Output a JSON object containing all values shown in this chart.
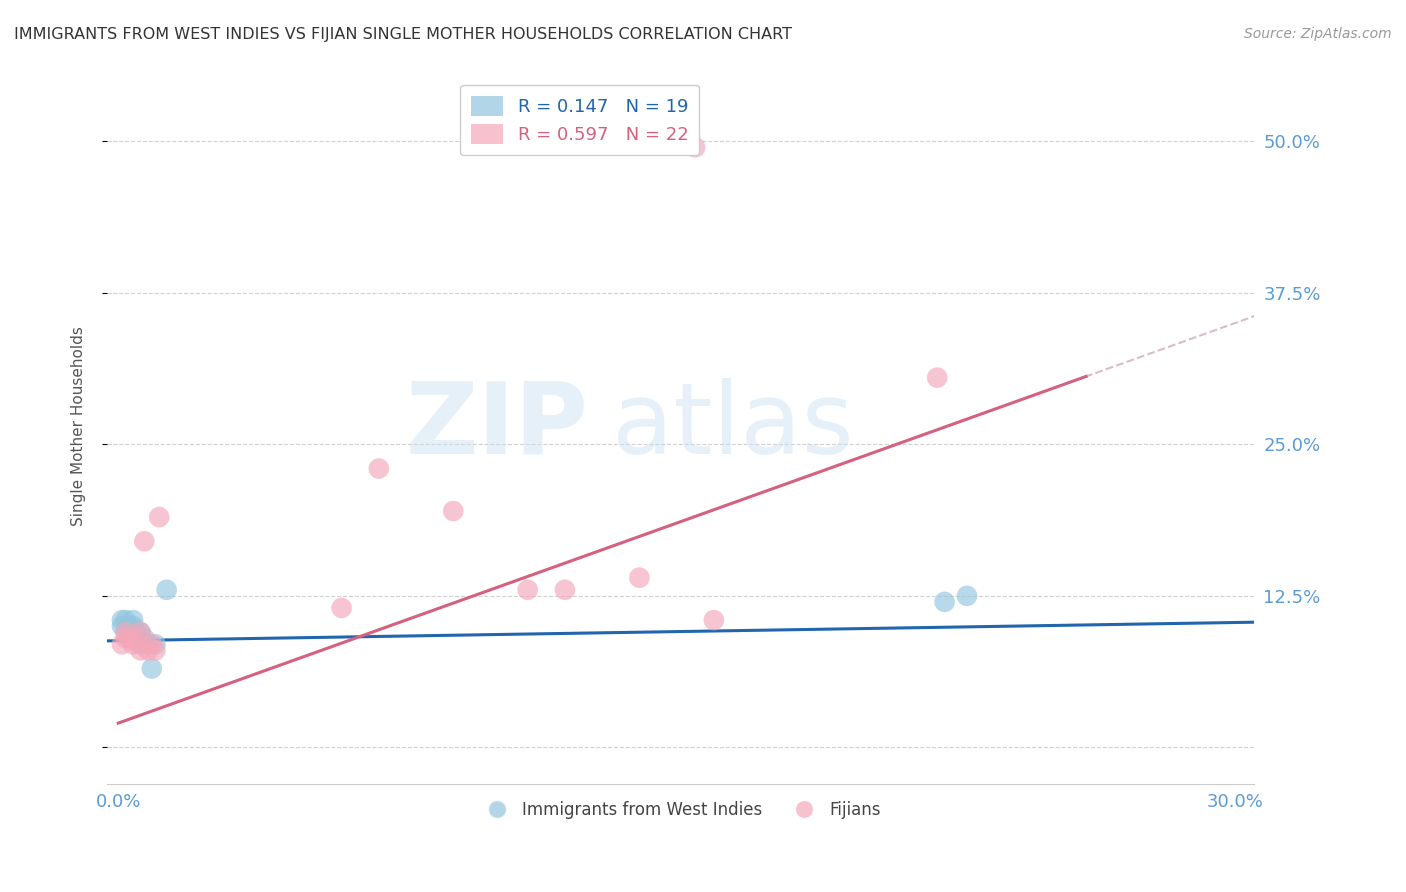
{
  "title": "IMMIGRANTS FROM WEST INDIES VS FIJIAN SINGLE MOTHER HOUSEHOLDS CORRELATION CHART",
  "source": "Source: ZipAtlas.com",
  "ylabel": "Single Mother Households",
  "xlim": [
    -0.003,
    0.305
  ],
  "ylim": [
    -0.03,
    0.56
  ],
  "yticks": [
    0.0,
    0.125,
    0.25,
    0.375,
    0.5
  ],
  "ytick_labels": [
    "",
    "12.5%",
    "25.0%",
    "37.5%",
    "50.0%"
  ],
  "xticks": [
    0.0,
    0.05,
    0.1,
    0.15,
    0.2,
    0.25,
    0.3
  ],
  "xtick_labels": [
    "0.0%",
    "",
    "",
    "",
    "",
    "",
    "30.0%"
  ],
  "legend_entry1": "R = 0.147   N = 19",
  "legend_entry2": "R = 0.597   N = 22",
  "legend_label1": "Immigrants from West Indies",
  "legend_label2": "Fijians",
  "blue_color": "#92c5de",
  "pink_color": "#f4a7b9",
  "blue_line_color": "#2166ac",
  "pink_line_color": "#d6617f",
  "pink_dash_color": "#c8a0b0",
  "blue_x": [
    0.001,
    0.001,
    0.002,
    0.002,
    0.003,
    0.003,
    0.004,
    0.004,
    0.005,
    0.005,
    0.006,
    0.006,
    0.007,
    0.008,
    0.009,
    0.01,
    0.013,
    0.222,
    0.228
  ],
  "blue_y": [
    0.1,
    0.105,
    0.095,
    0.105,
    0.095,
    0.1,
    0.1,
    0.105,
    0.09,
    0.095,
    0.095,
    0.085,
    0.09,
    0.085,
    0.065,
    0.085,
    0.13,
    0.12,
    0.125
  ],
  "pink_x": [
    0.001,
    0.002,
    0.002,
    0.003,
    0.004,
    0.005,
    0.006,
    0.006,
    0.007,
    0.008,
    0.009,
    0.01,
    0.011,
    0.06,
    0.07,
    0.09,
    0.11,
    0.12,
    0.14,
    0.16,
    0.155,
    0.22
  ],
  "pink_y": [
    0.085,
    0.09,
    0.095,
    0.09,
    0.085,
    0.09,
    0.095,
    0.08,
    0.17,
    0.08,
    0.085,
    0.08,
    0.19,
    0.115,
    0.23,
    0.195,
    0.13,
    0.13,
    0.14,
    0.105,
    0.495,
    0.305
  ],
  "blue_slope": 0.05,
  "blue_intercept": 0.088,
  "pink_slope": 1.1,
  "pink_intercept": 0.02,
  "grid_color": "#cccccc"
}
